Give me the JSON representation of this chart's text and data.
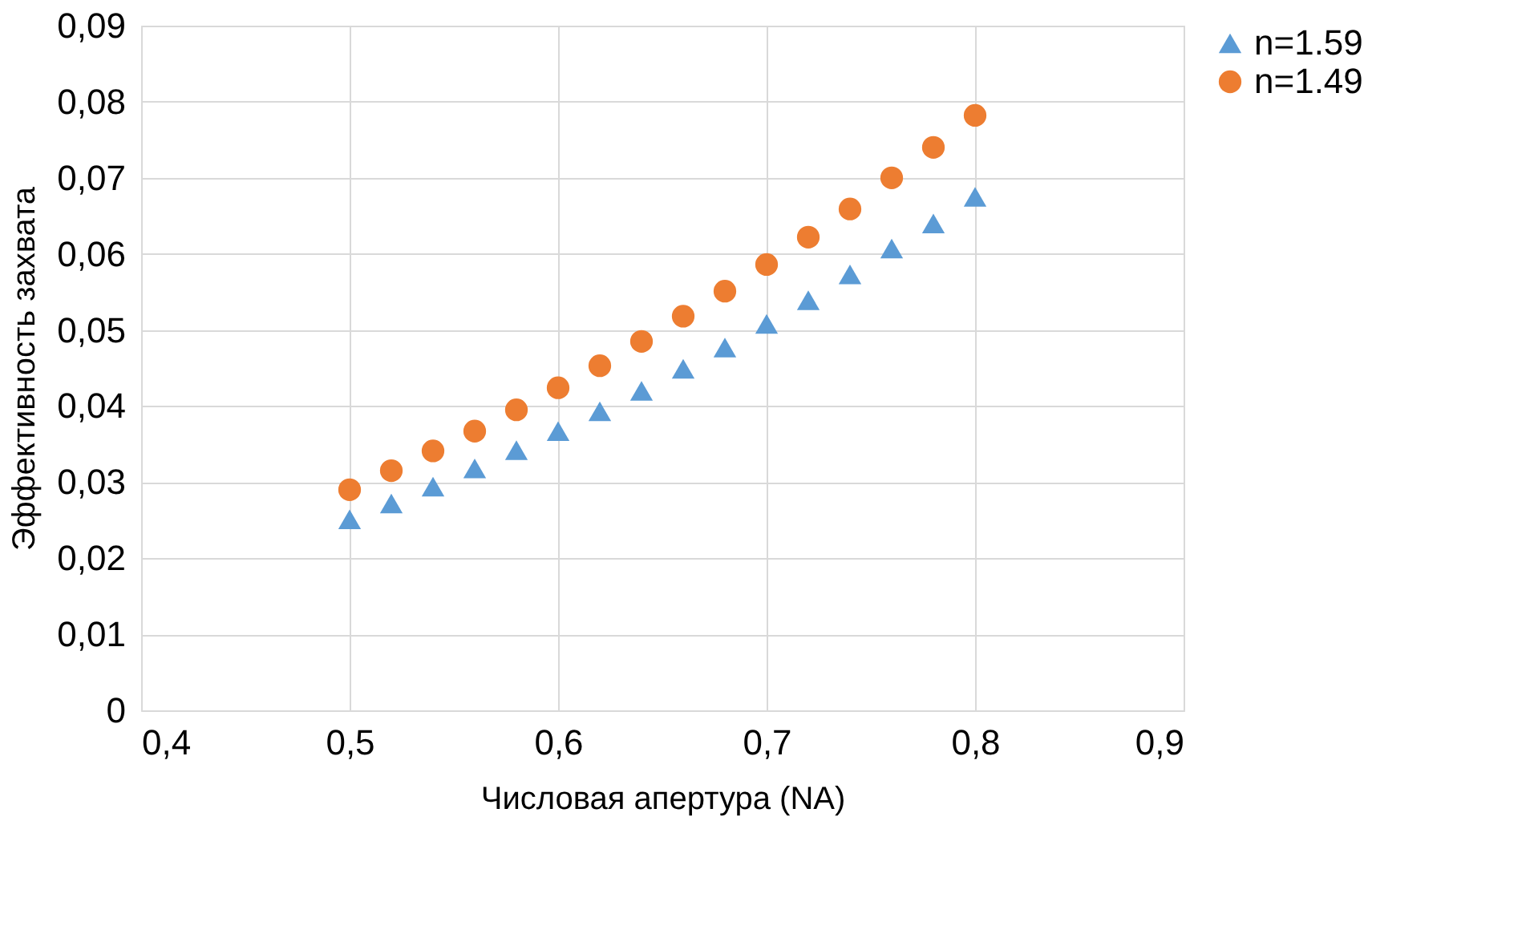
{
  "chart_data": {
    "type": "scatter",
    "xlabel": "Числовая апертура (NA)",
    "ylabel": "Эффективность захвата",
    "x": [
      0.5,
      0.52,
      0.54,
      0.56,
      0.58,
      0.6,
      0.62,
      0.64,
      0.66,
      0.68,
      0.7,
      0.72,
      0.74,
      0.76,
      0.78,
      0.8
    ],
    "series": [
      {
        "name": "n=1.59",
        "color": "#5b9bd5",
        "marker": "triangle",
        "values": [
          0.0251,
          0.0272,
          0.0294,
          0.0318,
          0.0342,
          0.0367,
          0.0393,
          0.042,
          0.0449,
          0.0477,
          0.0508,
          0.0539,
          0.0573,
          0.0607,
          0.064,
          0.0675
        ]
      },
      {
        "name": "n=1.49",
        "color": "#ed7d31",
        "marker": "circle",
        "values": [
          0.029,
          0.0315,
          0.0341,
          0.0367,
          0.0395,
          0.0424,
          0.0453,
          0.0485,
          0.0518,
          0.0551,
          0.0586,
          0.0622,
          0.0659,
          0.07,
          0.074,
          0.0782
        ]
      }
    ],
    "xlim": [
      0.4,
      0.9
    ],
    "xticks": [
      {
        "value": 0.4,
        "label": "0,4"
      },
      {
        "value": 0.5,
        "label": "0,5"
      },
      {
        "value": 0.6,
        "label": "0,6"
      },
      {
        "value": 0.7,
        "label": "0,7"
      },
      {
        "value": 0.8,
        "label": "0,8"
      },
      {
        "value": 0.9,
        "label": "0,9"
      }
    ],
    "ylim": [
      0,
      0.09
    ],
    "yticks": [
      0,
      {
        "value": 0.01,
        "label": "0,01"
      },
      {
        "value": 0.02,
        "label": "0,02"
      },
      {
        "value": 0.03,
        "label": "0,03"
      },
      {
        "value": 0.04,
        "label": "0,04"
      },
      {
        "value": 0.05,
        "label": "0,05"
      },
      {
        "value": 0.06,
        "label": "0,06"
      },
      {
        "value": 0.07,
        "label": "0,07"
      },
      {
        "value": 0.08,
        "label": "0,08"
      },
      {
        "value": 0.09,
        "label": "0,09"
      }
    ],
    "grid": true,
    "legend": "right"
  }
}
